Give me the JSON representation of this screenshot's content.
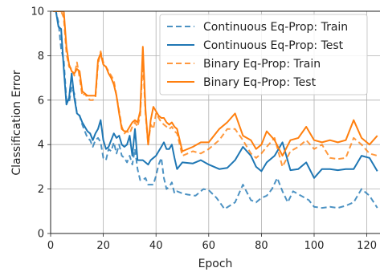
{
  "chart_data": {
    "type": "line",
    "title": "",
    "xlabel": "Epoch",
    "ylabel": "Classification Error",
    "xlim": [
      0,
      125
    ],
    "ylim": [
      0,
      10
    ],
    "xticks": [
      0,
      20,
      40,
      60,
      80,
      100,
      120
    ],
    "yticks": [
      0,
      2,
      4,
      6,
      8,
      10
    ],
    "grid": true,
    "legend_position": "top-right",
    "series": [
      {
        "name": "Continuous Eq-Prop: Train",
        "color": "#1f77b4",
        "style": "dashed",
        "x": [
          1,
          2,
          3,
          4,
          5,
          6,
          7,
          8,
          9,
          10,
          11,
          12,
          13,
          14,
          15,
          16,
          17,
          18,
          19,
          20,
          21,
          22,
          23,
          24,
          25,
          26,
          27,
          28,
          29,
          30,
          31,
          32,
          33,
          34,
          35,
          36,
          37,
          38,
          39,
          40,
          41,
          42,
          43,
          44,
          45,
          46,
          47,
          48,
          50,
          52,
          55,
          58,
          60,
          63,
          66,
          70,
          73,
          76,
          78,
          80,
          82,
          84,
          86,
          88,
          90,
          92,
          95,
          98,
          100,
          103,
          106,
          109,
          112,
          115,
          118,
          121,
          124
        ],
        "y": [
          10,
          10,
          9.5,
          8.3,
          7.8,
          6.0,
          5.9,
          6.6,
          6.3,
          5.4,
          5.3,
          4.9,
          4.6,
          4.3,
          4.2,
          3.9,
          4.2,
          4.3,
          4.1,
          3.4,
          3.3,
          3.8,
          3.7,
          4.1,
          3.6,
          4.0,
          3.5,
          3.4,
          3.2,
          3.5,
          3.1,
          3.8,
          2.9,
          2.4,
          2.4,
          2.5,
          2.2,
          2.2,
          2.2,
          2.6,
          3.1,
          3.4,
          2.5,
          2.0,
          2.1,
          2.3,
          1.8,
          1.9,
          1.8,
          1.75,
          1.7,
          2.0,
          1.95,
          1.6,
          1.1,
          1.4,
          2.2,
          1.5,
          1.4,
          1.6,
          1.7,
          2.0,
          2.5,
          1.9,
          1.4,
          1.9,
          1.7,
          1.5,
          1.2,
          1.15,
          1.2,
          1.15,
          1.25,
          1.4,
          2.0,
          1.7,
          1.15
        ]
      },
      {
        "name": "Continuous Eq-Prop: Test",
        "color": "#1f77b4",
        "style": "solid",
        "x": [
          1,
          2,
          3,
          4,
          5,
          6,
          7,
          8,
          9,
          10,
          11,
          12,
          13,
          14,
          15,
          16,
          17,
          18,
          19,
          20,
          21,
          22,
          23,
          24,
          25,
          26,
          27,
          28,
          29,
          30,
          31,
          32,
          33,
          34,
          35,
          36,
          37,
          38,
          39,
          40,
          41,
          42,
          43,
          44,
          45,
          46,
          47,
          48,
          50,
          54,
          57,
          60,
          64,
          67,
          70,
          73,
          76,
          78,
          80,
          82,
          85,
          88,
          91,
          94,
          97,
          100,
          103,
          106,
          109,
          112,
          115,
          118,
          121,
          124
        ],
        "y": [
          10,
          10,
          9.3,
          9.2,
          7.4,
          5.8,
          6.1,
          7.2,
          6.1,
          5.4,
          5.3,
          5.0,
          4.8,
          4.6,
          4.5,
          4.2,
          4.5,
          4.7,
          5.1,
          4.2,
          3.8,
          3.9,
          4.2,
          4.5,
          4.3,
          4.4,
          4.0,
          3.9,
          4.0,
          4.4,
          3.5,
          4.7,
          3.3,
          3.3,
          3.3,
          3.2,
          3.1,
          3.3,
          3.4,
          3.5,
          3.7,
          3.9,
          4.1,
          3.8,
          3.8,
          4.0,
          3.4,
          2.9,
          3.2,
          3.15,
          3.3,
          3.1,
          2.9,
          2.95,
          3.3,
          3.9,
          3.5,
          3.0,
          2.8,
          3.2,
          3.5,
          4.1,
          2.85,
          2.9,
          3.2,
          2.5,
          2.9,
          2.9,
          2.85,
          2.9,
          2.9,
          3.5,
          3.4,
          2.8
        ]
      },
      {
        "name": "Binary Eq-Prop: Train",
        "color": "#ff7f0e",
        "style": "dashed",
        "x": [
          1,
          2,
          3,
          4,
          5,
          6,
          7,
          8,
          9,
          10,
          11,
          12,
          13,
          14,
          15,
          16,
          17,
          18,
          19,
          20,
          21,
          22,
          23,
          24,
          25,
          26,
          27,
          28,
          29,
          30,
          31,
          32,
          33,
          34,
          35,
          36,
          37,
          38,
          39,
          40,
          41,
          42,
          43,
          44,
          45,
          46,
          47,
          48,
          50,
          54,
          57,
          60,
          64,
          67,
          70,
          73,
          76,
          78,
          80,
          82,
          85,
          88,
          91,
          94,
          97,
          100,
          103,
          106,
          109,
          112,
          115,
          118,
          121,
          124
        ],
        "y": [
          10,
          10,
          10,
          10,
          9.7,
          8.1,
          7.5,
          7.4,
          7.1,
          7.7,
          7.0,
          6.2,
          6.3,
          6.1,
          6.0,
          6.0,
          6.1,
          7.6,
          8.2,
          7.7,
          7.5,
          7.3,
          7.1,
          6.9,
          6.2,
          5.5,
          4.8,
          4.5,
          4.6,
          4.5,
          4.8,
          5.0,
          4.8,
          5.3,
          7.8,
          5.4,
          4.0,
          4.9,
          4.7,
          5.4,
          5.2,
          5.0,
          4.9,
          4.8,
          4.7,
          4.8,
          4.6,
          4.5,
          3.5,
          3.7,
          3.6,
          3.8,
          4.2,
          4.7,
          4.7,
          4.2,
          3.6,
          3.4,
          3.6,
          3.9,
          4.3,
          3.0,
          3.7,
          3.9,
          4.2,
          3.8,
          4.0,
          3.4,
          3.35,
          3.4,
          4.3,
          4.0,
          3.6,
          3.5
        ]
      },
      {
        "name": "Binary Eq-Prop: Test",
        "color": "#ff7f0e",
        "style": "solid",
        "x": [
          1,
          2,
          3,
          4,
          5,
          6,
          7,
          8,
          9,
          10,
          11,
          12,
          13,
          14,
          15,
          16,
          17,
          18,
          19,
          20,
          21,
          22,
          23,
          24,
          25,
          26,
          27,
          28,
          29,
          30,
          31,
          32,
          33,
          34,
          35,
          36,
          37,
          38,
          39,
          40,
          41,
          42,
          43,
          44,
          45,
          46,
          47,
          48,
          50,
          54,
          57,
          60,
          64,
          67,
          70,
          73,
          76,
          78,
          80,
          82,
          85,
          88,
          91,
          94,
          97,
          100,
          103,
          106,
          109,
          112,
          115,
          118,
          121,
          124
        ],
        "y": [
          10,
          10,
          10,
          10,
          10,
          8.4,
          7.6,
          7.3,
          7.2,
          7.4,
          7.3,
          6.4,
          6.3,
          6.2,
          6.2,
          6.2,
          6.2,
          7.8,
          8.1,
          7.6,
          7.5,
          7.2,
          7.0,
          6.7,
          6.2,
          5.4,
          4.7,
          4.6,
          4.6,
          4.8,
          5.0,
          5.1,
          5.0,
          5.5,
          8.4,
          5.6,
          4.0,
          5.1,
          5.7,
          5.5,
          5.3,
          5.2,
          5.2,
          5.0,
          4.9,
          5.0,
          4.8,
          4.7,
          3.7,
          3.9,
          4.1,
          4.1,
          4.7,
          5.0,
          5.4,
          4.4,
          4.2,
          3.8,
          4.0,
          4.6,
          4.2,
          3.5,
          4.2,
          4.3,
          4.8,
          4.2,
          4.1,
          4.2,
          4.1,
          4.2,
          5.1,
          4.3,
          4.0,
          4.4
        ]
      }
    ]
  }
}
